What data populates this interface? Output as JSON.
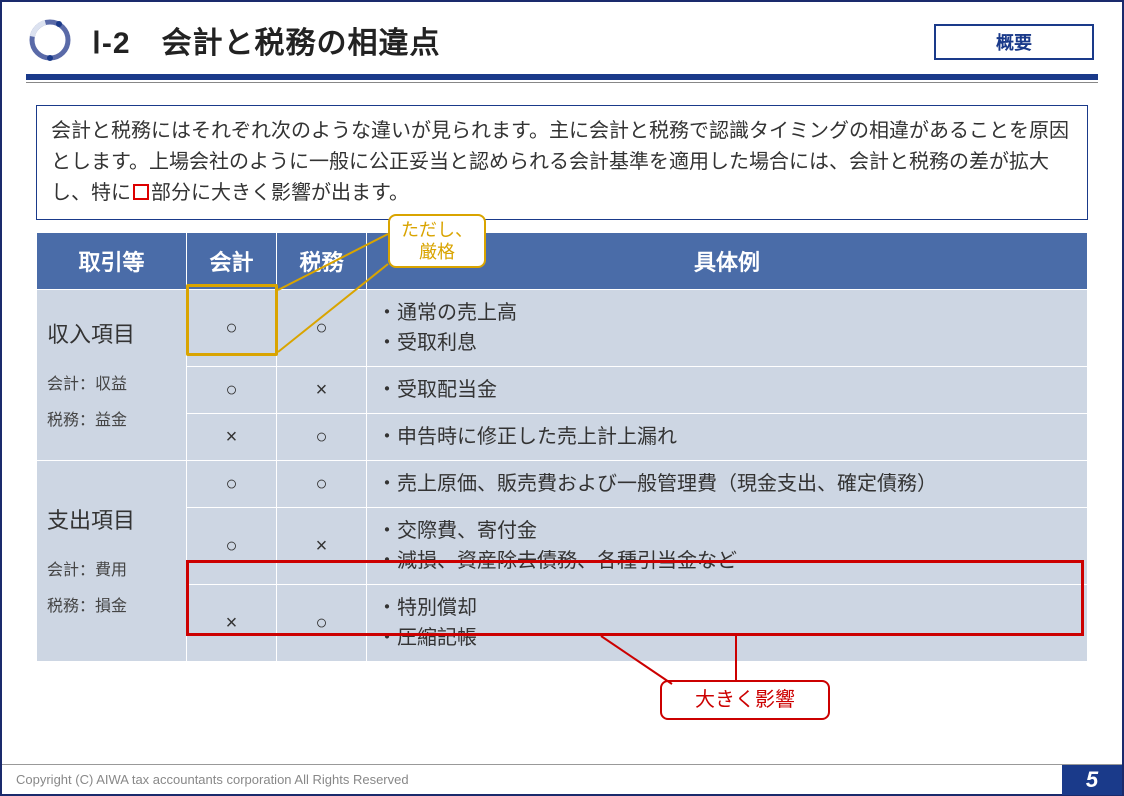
{
  "colors": {
    "brand_navy": "#1a3a8a",
    "header_fill": "#4a6ca8",
    "cell_fill": "#cdd6e3",
    "gold": "#d9a400",
    "red": "#cc0000",
    "text": "#333333",
    "footer_text": "#888888"
  },
  "header": {
    "title": "Ⅰ-2　会計と税務の相違点",
    "tag": "概要"
  },
  "lead": {
    "part1": "会計と税務にはそれぞれ次のような違いが見られます。主に会計と税務で認識タイミングの相違があることを原因とします。上場会社のように一般に公正妥当と認められる会計基準を適用した場合には、会計と税務の差が拡大し、特に",
    "part2": "部分に大きく影響が出ます。"
  },
  "table": {
    "headers": [
      "取引等",
      "会計",
      "税務",
      "具体例"
    ],
    "groups": [
      {
        "cat_title": "収入項目",
        "cat_subs": [
          "会計：収益",
          "税務：益金"
        ],
        "rows": [
          {
            "acc": "○",
            "tax": "○",
            "ex": "・通常の売上高\n・受取利息"
          },
          {
            "acc": "○",
            "tax": "×",
            "ex": "・受取配当金"
          },
          {
            "acc": "×",
            "tax": "○",
            "ex": "・申告時に修正した売上計上漏れ"
          }
        ]
      },
      {
        "cat_title": "支出項目",
        "cat_subs": [
          "会計：費用",
          "税務：損金"
        ],
        "rows": [
          {
            "acc": "○",
            "tax": "○",
            "ex": "・売上原価、販売費および一般管理費（現金支出、確定債務）"
          },
          {
            "acc": "○",
            "tax": "×",
            "ex": "・交際費、寄付金\n・減損、資産除去債務、各種引当金など"
          },
          {
            "acc": "×",
            "tax": "○",
            "ex": "・特別償却\n・圧縮記帳"
          }
        ]
      }
    ]
  },
  "callouts": {
    "gold": "ただし、\n厳格",
    "red": "大きく影響"
  },
  "footer": {
    "copyright": "Copyright (C) AIWA tax accountants corporation All Rights Reserved",
    "page": "5"
  }
}
